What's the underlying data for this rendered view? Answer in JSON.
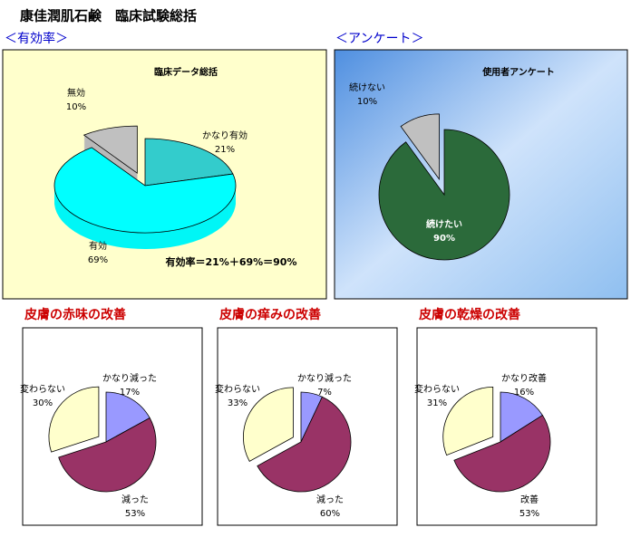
{
  "title": "康佳潤肌石鹸　臨床試験総括",
  "chart_data": [
    {
      "type": "pie",
      "section": "＜有効率＞",
      "title": "臨床データ総括",
      "categories": [
        "かなり有効",
        "有効",
        "無効"
      ],
      "values": [
        21,
        69,
        10
      ],
      "value_labels": [
        "21%",
        "69%",
        "10%"
      ],
      "colors": [
        "#33cccc",
        "#00ffff",
        "#c0c0c0"
      ],
      "annotation": "有効率＝21%＋69%＝90%"
    },
    {
      "type": "pie",
      "section": "＜アンケート＞",
      "title": "使用者アンケート",
      "categories": [
        "続けない",
        "続けたい"
      ],
      "values": [
        10,
        90
      ],
      "value_labels": [
        "10%",
        "90%"
      ],
      "colors": [
        "#c0c0c0",
        "#2b6a3a"
      ]
    },
    {
      "type": "pie",
      "title": "皮膚の赤味の改善",
      "categories": [
        "かなり減った",
        "減った",
        "変わらない"
      ],
      "values": [
        17,
        53,
        30
      ],
      "value_labels": [
        "17%",
        "53%",
        "30%"
      ],
      "colors": [
        "#9999ff",
        "#993366",
        "#ffffcc"
      ]
    },
    {
      "type": "pie",
      "title": "皮膚の痒みの改善",
      "categories": [
        "かなり減った",
        "減った",
        "変わらない"
      ],
      "values": [
        7,
        60,
        33
      ],
      "value_labels": [
        "7%",
        "60%",
        "33%"
      ],
      "colors": [
        "#9999ff",
        "#993366",
        "#ffffcc"
      ]
    },
    {
      "type": "pie",
      "title": "皮膚の乾燥の改善",
      "categories": [
        "かなり改善",
        "改善",
        "変わらない"
      ],
      "values": [
        16,
        53,
        31
      ],
      "value_labels": [
        "16%",
        "53%",
        "31%"
      ],
      "colors": [
        "#9999ff",
        "#993366",
        "#ffffcc"
      ]
    }
  ]
}
